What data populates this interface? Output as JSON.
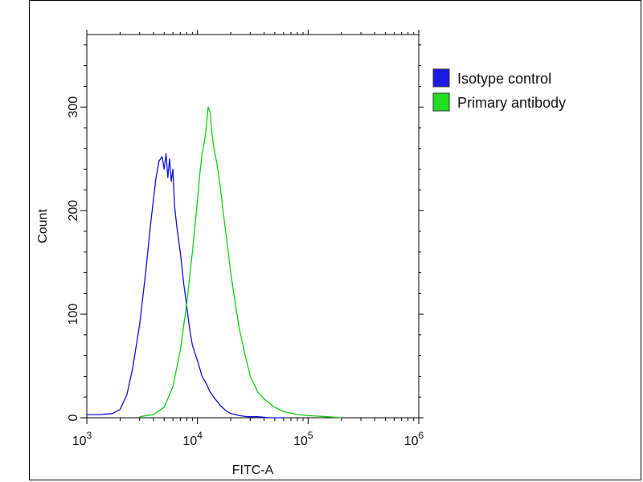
{
  "chart_data": {
    "type": "line",
    "title": "",
    "xlabel": "FITC-A",
    "ylabel": "Count",
    "xscale": "log",
    "xlim": [
      1000,
      1000000
    ],
    "ylim": [
      0,
      370
    ],
    "x_ticks": [
      {
        "value": 1000,
        "base": "10",
        "exp": "3"
      },
      {
        "value": 10000,
        "base": "10",
        "exp": "4"
      },
      {
        "value": 100000,
        "base": "10",
        "exp": "5"
      },
      {
        "value": 1000000,
        "base": "10",
        "exp": "6"
      }
    ],
    "y_ticks": [
      0,
      100,
      200,
      300
    ],
    "legend_position": "right-outside-top",
    "series": [
      {
        "name": "Isotype control",
        "color": "#1010e0",
        "swatch_color": "#1a1ae6",
        "x": [
          1000,
          1300,
          1700,
          2000,
          2300,
          2600,
          3000,
          3400,
          3800,
          4200,
          4500,
          4800,
          5000,
          5200,
          5400,
          5600,
          5800,
          6000,
          6200,
          6500,
          7000,
          7500,
          8000,
          8500,
          9000,
          10000,
          11000,
          12000,
          13000,
          14000,
          16000,
          18000,
          20000,
          24000,
          28000,
          35000,
          45000,
          60000
        ],
        "y": [
          3,
          3,
          4,
          8,
          22,
          48,
          90,
          140,
          190,
          230,
          248,
          252,
          240,
          255,
          232,
          250,
          228,
          240,
          205,
          185,
          160,
          130,
          108,
          85,
          70,
          55,
          40,
          33,
          25,
          20,
          12,
          7,
          4,
          2,
          1,
          1,
          0,
          0
        ]
      },
      {
        "name": "Primary antibody",
        "color": "#10d010",
        "swatch_color": "#22dd22",
        "x": [
          3000,
          4000,
          5000,
          6000,
          7000,
          8000,
          9000,
          10000,
          10500,
          11000,
          11500,
          12000,
          12500,
          13000,
          13500,
          14000,
          15000,
          16000,
          17000,
          18000,
          19000,
          20000,
          22000,
          24000,
          27000,
          30000,
          35000,
          40000,
          50000,
          60000,
          80000,
          100000,
          150000,
          200000
        ],
        "y": [
          1,
          3,
          10,
          30,
          65,
          110,
          160,
          210,
          235,
          255,
          265,
          280,
          300,
          295,
          275,
          262,
          245,
          225,
          200,
          180,
          160,
          140,
          110,
          85,
          60,
          40,
          25,
          18,
          10,
          6,
          3,
          2,
          1,
          0
        ]
      }
    ]
  }
}
